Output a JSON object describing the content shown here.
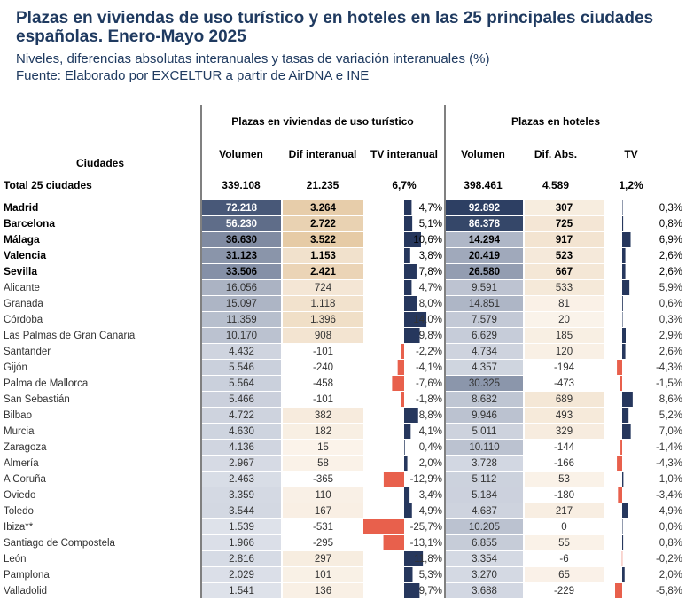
{
  "title": "Plazas en viviendas de uso turístico y en hoteles en las 25 principales ciudades españolas. Enero-Mayo 2025",
  "subtitle_lines": [
    "Niveles, diferencias absolutas interanuales y tasas de variación interanuales (%)",
    "Fuente: Elaborado por EXCELTUR a partir de AirDNA e INE"
  ],
  "colors": {
    "title": "#1f3a60",
    "volume_scale_light": "#eef1f7",
    "volume_scale_dark": "#2d3f63",
    "diff_scale_light": "#fbf4ec",
    "diff_scale_dark": "#e6cba6",
    "bar_positive": "#26375d",
    "bar_negative": "#e8604c",
    "divider": "#000000"
  },
  "chart_data": {
    "type": "table",
    "group_headers": [
      "Plazas en viviendas de uso turístico",
      "Plazas en hoteles"
    ],
    "columns": [
      "Volumen",
      "Dif interanual",
      "TV interanual",
      "Volumen",
      "Dif. Abs.",
      "TV"
    ],
    "row_header": "Ciudades",
    "total": {
      "city": "Total 25 ciudades",
      "vut_volume": "339.108",
      "vut_diff": "21.235",
      "vut_tv": "6,7%",
      "hotel_volume": "398.461",
      "hotel_diff": "4.589",
      "hotel_tv": "1,2%"
    },
    "bold_rows": 5,
    "rows": [
      {
        "city": "Madrid",
        "vv": 72218,
        "vut_volume": "72.218",
        "dv": 3264,
        "vut_diff": "3.264",
        "tv": 4.7,
        "vut_tv": "4,7%",
        "hv": 92892,
        "hotel_volume": "92.892",
        "hd": 307,
        "hotel_diff": "307",
        "htv": 0.3,
        "hotel_tv": "0,3%"
      },
      {
        "city": "Barcelona",
        "vv": 56230,
        "vut_volume": "56.230",
        "dv": 2722,
        "vut_diff": "2.722",
        "tv": 5.1,
        "vut_tv": "5,1%",
        "hv": 86378,
        "hotel_volume": "86.378",
        "hd": 725,
        "hotel_diff": "725",
        "htv": 0.8,
        "hotel_tv": "0,8%"
      },
      {
        "city": "Málaga",
        "vv": 36630,
        "vut_volume": "36.630",
        "dv": 3522,
        "vut_diff": "3.522",
        "tv": 10.6,
        "vut_tv": "10,6%",
        "hv": 14294,
        "hotel_volume": "14.294",
        "hd": 917,
        "hotel_diff": "917",
        "htv": 6.9,
        "hotel_tv": "6,9%"
      },
      {
        "city": "Valencia",
        "vv": 31123,
        "vut_volume": "31.123",
        "dv": 1153,
        "vut_diff": "1.153",
        "tv": 3.8,
        "vut_tv": "3,8%",
        "hv": 20419,
        "hotel_volume": "20.419",
        "hd": 523,
        "hotel_diff": "523",
        "htv": 2.6,
        "hotel_tv": "2,6%"
      },
      {
        "city": "Sevilla",
        "vv": 33506,
        "vut_volume": "33.506",
        "dv": 2421,
        "vut_diff": "2.421",
        "tv": 7.8,
        "vut_tv": "7,8%",
        "hv": 26580,
        "hotel_volume": "26.580",
        "hd": 667,
        "hotel_diff": "667",
        "htv": 2.6,
        "hotel_tv": "2,6%"
      },
      {
        "city": "Alicante",
        "vv": 16056,
        "vut_volume": "16.056",
        "dv": 724,
        "vut_diff": "724",
        "tv": 4.7,
        "vut_tv": "4,7%",
        "hv": 9591,
        "hotel_volume": "9.591",
        "hd": 533,
        "hotel_diff": "533",
        "htv": 5.9,
        "hotel_tv": "5,9%"
      },
      {
        "city": "Granada",
        "vv": 15097,
        "vut_volume": "15.097",
        "dv": 1118,
        "vut_diff": "1.118",
        "tv": 8.0,
        "vut_tv": "8,0%",
        "hv": 14851,
        "hotel_volume": "14.851",
        "hd": 81,
        "hotel_diff": "81",
        "htv": 0.6,
        "hotel_tv": "0,6%"
      },
      {
        "city": "Córdoba",
        "vv": 11359,
        "vut_volume": "11.359",
        "dv": 1396,
        "vut_diff": "1.396",
        "tv": 14.0,
        "vut_tv": "14,0%",
        "hv": 7579,
        "hotel_volume": "7.579",
        "hd": 20,
        "hotel_diff": "20",
        "htv": 0.3,
        "hotel_tv": "0,3%"
      },
      {
        "city": "Las Palmas de Gran Canaria",
        "vv": 10170,
        "vut_volume": "10.170",
        "dv": 908,
        "vut_diff": "908",
        "tv": 9.8,
        "vut_tv": "9,8%",
        "hv": 6629,
        "hotel_volume": "6.629",
        "hd": 185,
        "hotel_diff": "185",
        "htv": 2.9,
        "hotel_tv": "2,9%"
      },
      {
        "city": "Santander",
        "vv": 4432,
        "vut_volume": "4.432",
        "dv": -101,
        "vut_diff": "-101",
        "tv": -2.2,
        "vut_tv": "-2,2%",
        "hv": 4734,
        "hotel_volume": "4.734",
        "hd": 120,
        "hotel_diff": "120",
        "htv": 2.6,
        "hotel_tv": "2,6%"
      },
      {
        "city": "Gijón",
        "vv": 5546,
        "vut_volume": "5.546",
        "dv": -240,
        "vut_diff": "-240",
        "tv": -4.1,
        "vut_tv": "-4,1%",
        "hv": 4357,
        "hotel_volume": "4.357",
        "hd": -194,
        "hotel_diff": "-194",
        "htv": -4.3,
        "hotel_tv": "-4,3%"
      },
      {
        "city": "Palma de Mallorca",
        "vv": 5564,
        "vut_volume": "5.564",
        "dv": -458,
        "vut_diff": "-458",
        "tv": -7.6,
        "vut_tv": "-7,6%",
        "hv": 30325,
        "hotel_volume": "30.325",
        "hd": -473,
        "hotel_diff": "-473",
        "htv": -1.5,
        "hotel_tv": "-1,5%"
      },
      {
        "city": "San Sebastián",
        "vv": 5466,
        "vut_volume": "5.466",
        "dv": -101,
        "vut_diff": "-101",
        "tv": -1.8,
        "vut_tv": "-1,8%",
        "hv": 8682,
        "hotel_volume": "8.682",
        "hd": 689,
        "hotel_diff": "689",
        "htv": 8.6,
        "hotel_tv": "8,6%"
      },
      {
        "city": "Bilbao",
        "vv": 4722,
        "vut_volume": "4.722",
        "dv": 382,
        "vut_diff": "382",
        "tv": 8.8,
        "vut_tv": "8,8%",
        "hv": 9946,
        "hotel_volume": "9.946",
        "hd": 493,
        "hotel_diff": "493",
        "htv": 5.2,
        "hotel_tv": "5,2%"
      },
      {
        "city": "Murcia",
        "vv": 4630,
        "vut_volume": "4.630",
        "dv": 182,
        "vut_diff": "182",
        "tv": 4.1,
        "vut_tv": "4,1%",
        "hv": 5011,
        "hotel_volume": "5.011",
        "hd": 329,
        "hotel_diff": "329",
        "htv": 7.0,
        "hotel_tv": "7,0%"
      },
      {
        "city": "Zaragoza",
        "vv": 4136,
        "vut_volume": "4.136",
        "dv": 15,
        "vut_diff": "15",
        "tv": 0.4,
        "vut_tv": "0,4%",
        "hv": 10110,
        "hotel_volume": "10.110",
        "hd": -144,
        "hotel_diff": "-144",
        "htv": -1.4,
        "hotel_tv": "-1,4%"
      },
      {
        "city": "Almería",
        "vv": 2967,
        "vut_volume": "2.967",
        "dv": 58,
        "vut_diff": "58",
        "tv": 2.0,
        "vut_tv": "2,0%",
        "hv": 3728,
        "hotel_volume": "3.728",
        "hd": -166,
        "hotel_diff": "-166",
        "htv": -4.3,
        "hotel_tv": "-4,3%"
      },
      {
        "city": "A Coruña",
        "vv": 2463,
        "vut_volume": "2.463",
        "dv": -365,
        "vut_diff": "-365",
        "tv": -12.9,
        "vut_tv": "-12,9%",
        "hv": 5112,
        "hotel_volume": "5.112",
        "hd": 53,
        "hotel_diff": "53",
        "htv": 1.0,
        "hotel_tv": "1,0%"
      },
      {
        "city": "Oviedo",
        "vv": 3359,
        "vut_volume": "3.359",
        "dv": 110,
        "vut_diff": "110",
        "tv": 3.4,
        "vut_tv": "3,4%",
        "hv": 5184,
        "hotel_volume": "5.184",
        "hd": -180,
        "hotel_diff": "-180",
        "htv": -3.4,
        "hotel_tv": "-3,4%"
      },
      {
        "city": "Toledo",
        "vv": 3544,
        "vut_volume": "3.544",
        "dv": 167,
        "vut_diff": "167",
        "tv": 4.9,
        "vut_tv": "4,9%",
        "hv": 4687,
        "hotel_volume": "4.687",
        "hd": 217,
        "hotel_diff": "217",
        "htv": 4.9,
        "hotel_tv": "4,9%"
      },
      {
        "city": "Ibiza**",
        "vv": 1539,
        "vut_volume": "1.539",
        "dv": -531,
        "vut_diff": "-531",
        "tv": -25.7,
        "vut_tv": "-25,7%",
        "hv": 10205,
        "hotel_volume": "10.205",
        "hd": 0,
        "hotel_diff": "0",
        "htv": 0.0,
        "hotel_tv": "0,0%"
      },
      {
        "city": "Santiago de Compostela",
        "vv": 1966,
        "vut_volume": "1.966",
        "dv": -295,
        "vut_diff": "-295",
        "tv": -13.1,
        "vut_tv": "-13,1%",
        "hv": 6855,
        "hotel_volume": "6.855",
        "hd": 55,
        "hotel_diff": "55",
        "htv": 0.8,
        "hotel_tv": "0,8%"
      },
      {
        "city": "León",
        "vv": 2816,
        "vut_volume": "2.816",
        "dv": 297,
        "vut_diff": "297",
        "tv": 11.8,
        "vut_tv": "11,8%",
        "hv": 3354,
        "hotel_volume": "3.354",
        "hd": -6,
        "hotel_diff": "-6",
        "htv": -0.2,
        "hotel_tv": "-0,2%"
      },
      {
        "city": "Pamplona",
        "vv": 2029,
        "vut_volume": "2.029",
        "dv": 101,
        "vut_diff": "101",
        "tv": 5.3,
        "vut_tv": "5,3%",
        "hv": 3270,
        "hotel_volume": "3.270",
        "hd": 65,
        "hotel_diff": "65",
        "htv": 2.0,
        "hotel_tv": "2,0%"
      },
      {
        "city": "Valladolid",
        "vv": 1541,
        "vut_volume": "1.541",
        "dv": 136,
        "vut_diff": "136",
        "tv": 9.7,
        "vut_tv": "9,7%",
        "hv": 3688,
        "hotel_volume": "3.688",
        "hd": -229,
        "hotel_diff": "-229",
        "htv": -5.8,
        "hotel_tv": "-5,8%"
      }
    ]
  }
}
